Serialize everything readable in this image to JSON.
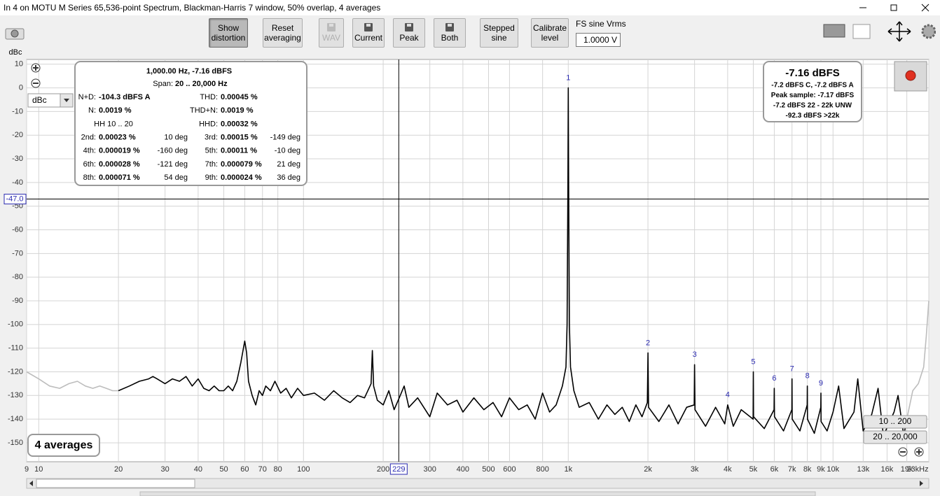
{
  "window": {
    "title": "In 4 on MOTU M Series 65,536-point Spectrum, Blackman-Harris 7 window, 50% overlap, 4 averages"
  },
  "toolbar": {
    "buttons": [
      {
        "lines": [
          "Show",
          "distortion"
        ],
        "state": "pressed"
      },
      {
        "lines": [
          "Reset",
          "averaging"
        ]
      },
      {
        "lines": [
          "WAV"
        ],
        "state": "disabled"
      },
      {
        "lines": [
          "Current"
        ]
      },
      {
        "lines": [
          "Peak"
        ]
      },
      {
        "lines": [
          "Both"
        ]
      },
      {
        "lines": [
          "Stepped",
          "sine"
        ]
      },
      {
        "lines": [
          "Calibrate",
          "level"
        ]
      }
    ],
    "fs_label": "FS sine Vrms",
    "fs_value": "1.0000 V"
  },
  "chart_data": {
    "type": "line",
    "y_label": "dBc",
    "xscale": "log",
    "xlim": [
      9,
      23000
    ],
    "ylim": [
      -158,
      12
    ],
    "grid": true,
    "xticks": [
      9,
      10,
      20,
      30,
      40,
      50,
      60,
      70,
      80,
      100,
      200,
      300,
      400,
      500,
      600,
      800,
      {
        "value": 1000,
        "label": "1k"
      },
      {
        "value": 2000,
        "label": "2k"
      },
      {
        "value": 3000,
        "label": "3k"
      },
      {
        "value": 4000,
        "label": "4k"
      },
      {
        "value": 5000,
        "label": "5k"
      },
      {
        "value": 6000,
        "label": "6k"
      },
      {
        "value": 7000,
        "label": "7k"
      },
      {
        "value": 8000,
        "label": "8k"
      },
      {
        "value": 9000,
        "label": "9k"
      },
      {
        "value": 10000,
        "label": "10k"
      },
      {
        "value": 13000,
        "label": "13k"
      },
      {
        "value": 16000,
        "label": "16k"
      },
      {
        "value": 19000,
        "label": "19k"
      },
      {
        "value": 23000,
        "label": "23kHz"
      }
    ],
    "yticks": [
      10,
      0,
      -10,
      -20,
      -30,
      -40,
      -50,
      -60,
      -70,
      -80,
      -90,
      -100,
      -110,
      -120,
      -130,
      -140,
      -150
    ],
    "series": [
      {
        "color": "#bdbdbd",
        "x": [
          9,
          10,
          11,
          12,
          13,
          14,
          15,
          16,
          17,
          18,
          19,
          20
        ],
        "values": [
          -120,
          -123,
          -126,
          -127,
          -125,
          -124,
          -126,
          -127,
          -126,
          -127,
          -128,
          -128
        ]
      },
      {
        "color": "#000000",
        "x": [
          20,
          22,
          24,
          26,
          27,
          28,
          30,
          32,
          34,
          36,
          38,
          40,
          42,
          44,
          46,
          48,
          50,
          52,
          54,
          56,
          58,
          60,
          61,
          62,
          64,
          66,
          68,
          70,
          72,
          75,
          78,
          82,
          86,
          90,
          95,
          100,
          110,
          120,
          130,
          140,
          150,
          160,
          170,
          180,
          182,
          184,
          190,
          200,
          210,
          220,
          230,
          240,
          250,
          270,
          300,
          320,
          350,
          380,
          400,
          440,
          480,
          520,
          560,
          600,
          650,
          700,
          750,
          800,
          850,
          900,
          950,
          980,
          990,
          997,
          1000,
          1003,
          1010,
          1020,
          1050,
          1100,
          1200,
          1300,
          1400,
          1500,
          1600,
          1700,
          1800,
          1900,
          1990,
          2000,
          2010,
          2200,
          2400,
          2600,
          2800,
          2990,
          3000,
          3010,
          3300,
          3600,
          3900,
          4000,
          4200,
          4500,
          4990,
          5000,
          5010,
          5500,
          5990,
          6000,
          6010,
          6500,
          6990,
          7000,
          7010,
          7500,
          7990,
          8000,
          8010,
          8500,
          8990,
          9000,
          9010,
          9500,
          10000,
          10500,
          11000,
          12000,
          12400,
          13000,
          14000,
          14800,
          15500,
          17000,
          17600,
          18500,
          19000
        ],
        "values": [
          -128,
          -126,
          -124,
          -123,
          -122,
          -123,
          -125,
          -123,
          -124,
          -122,
          -126,
          -123,
          -127,
          -128,
          -126,
          -128,
          -128,
          -126,
          -128,
          -124,
          -116,
          -107,
          -112,
          -124,
          -130,
          -134,
          -128,
          -130,
          -126,
          -128,
          -124,
          -129,
          -127,
          -131,
          -127,
          -130,
          -129,
          -132,
          -128,
          -131,
          -133,
          -130,
          -131,
          -125,
          -111,
          -126,
          -132,
          -134,
          -128,
          -136,
          -131,
          -126,
          -135,
          -131,
          -139,
          -129,
          -134,
          -132,
          -137,
          -131,
          -136,
          -133,
          -139,
          -131,
          -136,
          -134,
          -140,
          -129,
          -137,
          -134,
          -126,
          -118,
          -100,
          -40,
          0,
          -40,
          -100,
          -118,
          -128,
          -135,
          -133,
          -140,
          -134,
          -138,
          -135,
          -141,
          -134,
          -139,
          -133,
          -112,
          -135,
          -141,
          -134,
          -142,
          -135,
          -134,
          -117,
          -136,
          -143,
          -135,
          -142,
          -134,
          -143,
          -136,
          -140,
          -120,
          -139,
          -144,
          -136,
          -127,
          -139,
          -145,
          -136,
          -123,
          -140,
          -145,
          -134,
          -126,
          -140,
          -146,
          -135,
          -129,
          -141,
          -145,
          -137,
          -126,
          -144,
          -137,
          -123,
          -145,
          -138,
          -127,
          -147,
          -137,
          -130,
          -147,
          -140
        ]
      },
      {
        "color": "#bdbdbd",
        "x": [
          19000,
          20000,
          21000,
          22000,
          22500,
          23000
        ],
        "values": [
          -140,
          -128,
          -125,
          -118,
          -105,
          -90
        ]
      }
    ],
    "harmonic_markers": [
      {
        "label": 1,
        "x": 1000,
        "y": 0
      },
      {
        "label": 2,
        "x": 2000,
        "y": -112
      },
      {
        "label": 3,
        "x": 3000,
        "y": -117
      },
      {
        "label": 4,
        "x": 4000,
        "y": -134
      },
      {
        "label": 5,
        "x": 5000,
        "y": -120
      },
      {
        "label": 6,
        "x": 6000,
        "y": -127
      },
      {
        "label": 7,
        "x": 7000,
        "y": -123
      },
      {
        "label": 8,
        "x": 8000,
        "y": -126
      },
      {
        "label": 9,
        "x": 9000,
        "y": -129
      }
    ],
    "cursor": {
      "x": 229,
      "y": {
        "value": -47,
        "label": "-47.0"
      }
    }
  },
  "info_panel": {
    "header": "1,000.00 Hz, -7.16 dBFS",
    "span_label": "Span:",
    "span_value": "20 .. 20,000 Hz",
    "rows": [
      [
        "N+D:",
        "-104.3 dBFS A",
        "THD:",
        "0.00045 %"
      ],
      [
        "N:",
        "0.0019 %",
        "THD+N:",
        "0.0019 %"
      ],
      [
        "HH 10 .. 20",
        "HHD:",
        "0.00032 %"
      ],
      [
        "2nd:",
        "0.00023 %",
        "10 deg",
        "3rd:",
        "0.00015 %",
        "-149 deg"
      ],
      [
        "4th:",
        "0.000019 %",
        "-160 deg",
        "5th:",
        "0.00011 %",
        "-10 deg"
      ],
      [
        "6th:",
        "0.000028 %",
        "-121 deg",
        "7th:",
        "0.000079 %",
        "21 deg"
      ],
      [
        "8th:",
        "0.000071 %",
        "54 deg",
        "9th:",
        "0.000024 %",
        "36 deg"
      ]
    ]
  },
  "level_panel": {
    "main": "-7.16 dBFS",
    "lines": [
      "-7.2 dBFS C, -7.2 dBFS A",
      "Peak sample: -7.17 dBFS",
      "-7.2 dBFS 22 - 22k UNW",
      "-92.3 dBFS >22k"
    ]
  },
  "overlay": {
    "averages": "4 averages",
    "unit_select": "dBc",
    "range_buttons": [
      "10 .. 200",
      "20 .. 20,000"
    ]
  }
}
